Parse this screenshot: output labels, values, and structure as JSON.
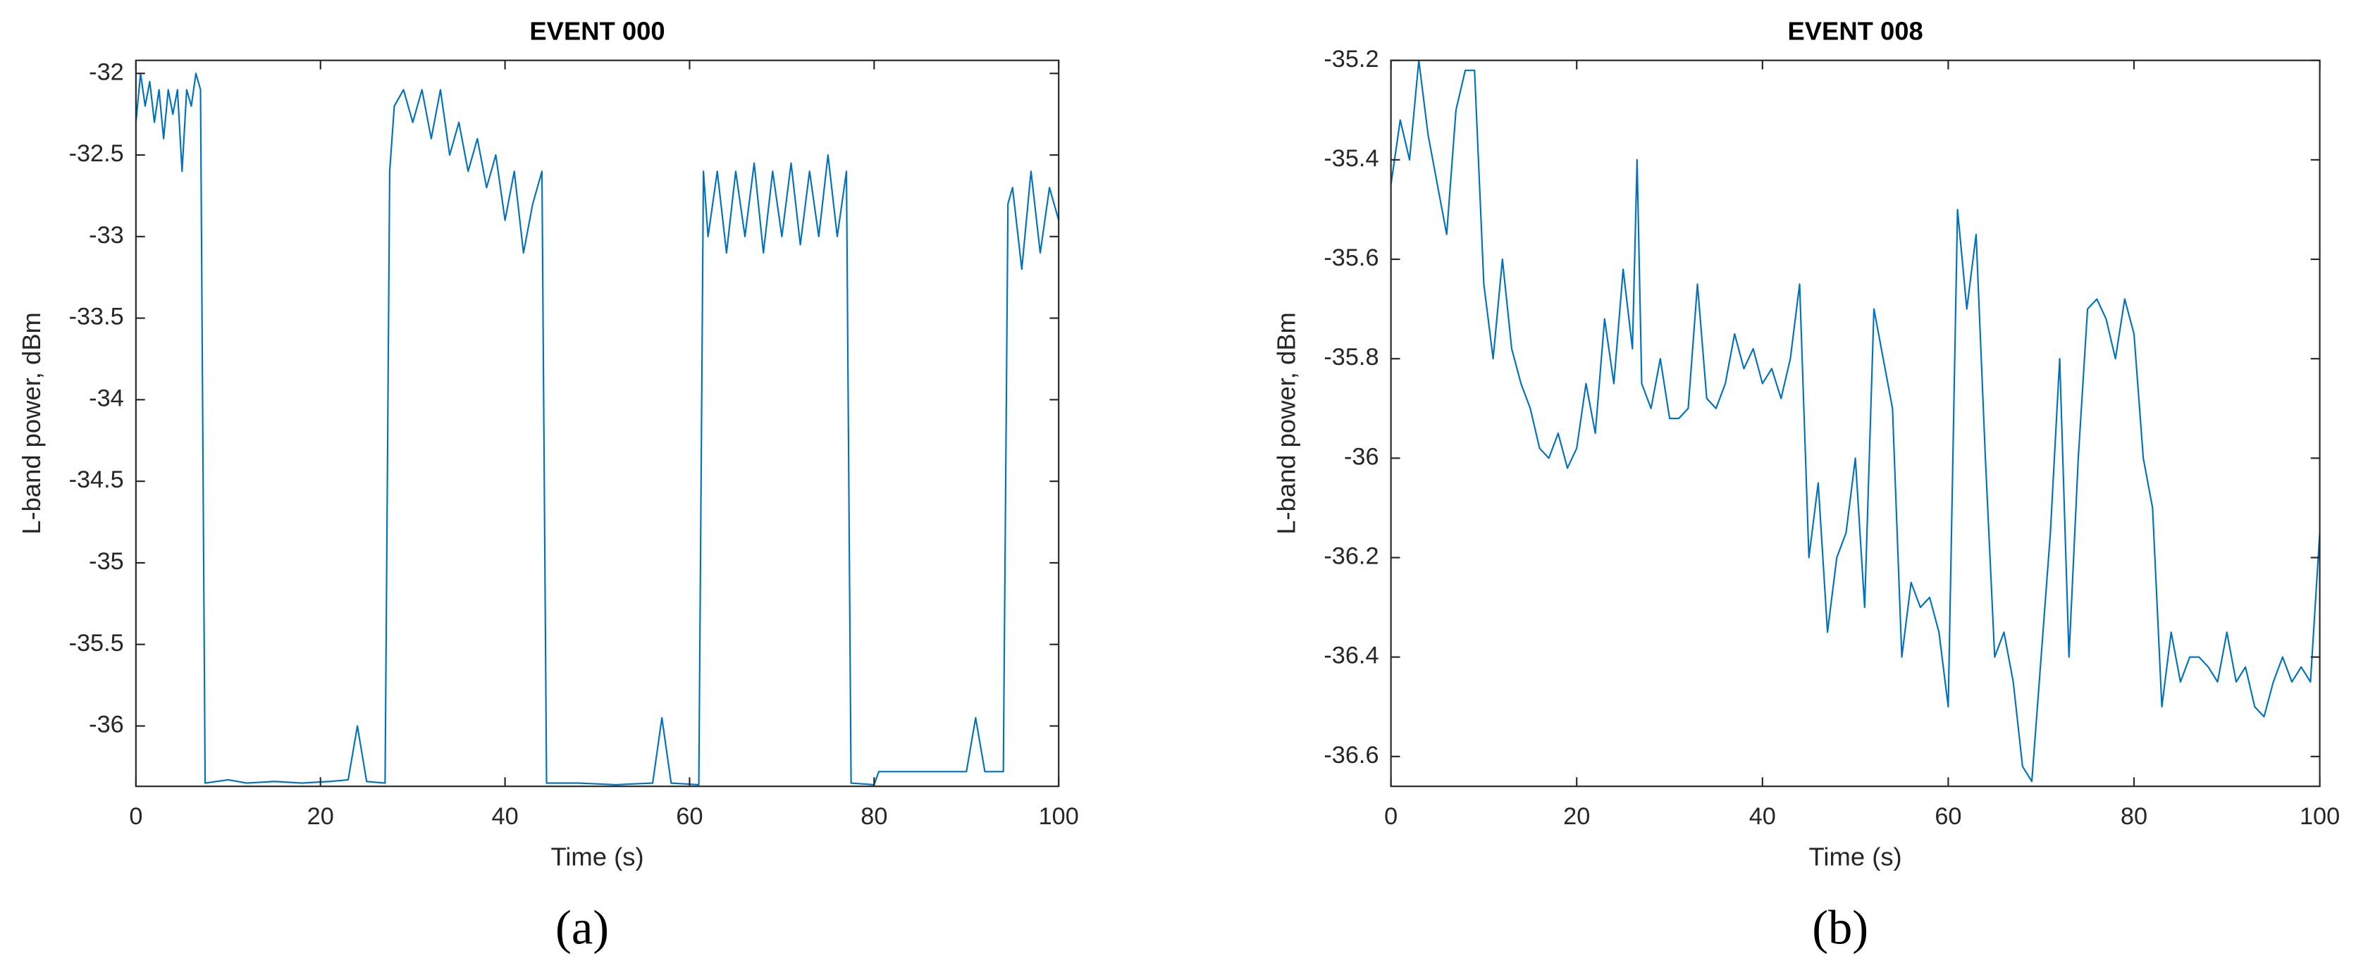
{
  "chart_data": [
    {
      "type": "line",
      "title": "EVENT 000",
      "xlabel": "Time (s)",
      "ylabel": "L-band power, dBm",
      "caption": "(a)",
      "color": "#0072bd",
      "grid": false,
      "xlim": [
        0,
        100
      ],
      "xticks": [
        0,
        20,
        40,
        60,
        80,
        100
      ],
      "ylim": [
        -36.37,
        -31.92
      ],
      "yticks": [
        -36,
        -35.5,
        -35,
        -34.5,
        -34,
        -33.5,
        -33,
        -32.5,
        -32
      ],
      "x": [
        0,
        0.5,
        1,
        1.5,
        2,
        2.5,
        3,
        3.5,
        4,
        4.5,
        5,
        5.5,
        6,
        6.5,
        7,
        7.5,
        10,
        12,
        15,
        18,
        21,
        23,
        24,
        25,
        27,
        27.5,
        28,
        29,
        30,
        31,
        32,
        33,
        34,
        35,
        36,
        37,
        38,
        39,
        40,
        41,
        42,
        43,
        44,
        44.5,
        48,
        52,
        56,
        57,
        58,
        61,
        61.5,
        62,
        63,
        64,
        65,
        66,
        67,
        68,
        69,
        70,
        71,
        72,
        73,
        74,
        75,
        76,
        77,
        77.5,
        80,
        80.5,
        85,
        90,
        91,
        92,
        94,
        94.5,
        95,
        96,
        97,
        98,
        99,
        100
      ],
      "values": [
        -32.3,
        -32.0,
        -32.2,
        -32.05,
        -32.3,
        -32.1,
        -32.4,
        -32.1,
        -32.25,
        -32.1,
        -32.6,
        -32.1,
        -32.2,
        -32.0,
        -32.1,
        -36.35,
        -36.33,
        -36.35,
        -36.34,
        -36.35,
        -36.34,
        -36.33,
        -36.0,
        -36.34,
        -36.35,
        -32.6,
        -32.2,
        -32.1,
        -32.3,
        -32.1,
        -32.4,
        -32.1,
        -32.5,
        -32.3,
        -32.6,
        -32.4,
        -32.7,
        -32.5,
        -32.9,
        -32.6,
        -33.1,
        -32.8,
        -32.6,
        -36.35,
        -36.35,
        -36.36,
        -36.35,
        -35.95,
        -36.35,
        -36.36,
        -32.6,
        -33.0,
        -32.6,
        -33.1,
        -32.6,
        -33.0,
        -32.55,
        -33.1,
        -32.6,
        -33.0,
        -32.55,
        -33.05,
        -32.6,
        -33.0,
        -32.5,
        -33.0,
        -32.6,
        -36.35,
        -36.36,
        -36.28,
        -36.28,
        -36.28,
        -35.95,
        -36.28,
        -36.28,
        -32.8,
        -32.7,
        -33.2,
        -32.6,
        -33.1,
        -32.7,
        -32.9
      ]
    },
    {
      "type": "line",
      "title": "EVENT 008",
      "xlabel": "Time (s)",
      "ylabel": "L-band power, dBm",
      "caption": "(b)",
      "color": "#0072bd",
      "grid": false,
      "xlim": [
        0,
        100
      ],
      "xticks": [
        0,
        20,
        40,
        60,
        80,
        100
      ],
      "ylim": [
        -36.66,
        -35.2
      ],
      "yticks": [
        -36.6,
        -36.4,
        -36.2,
        -36,
        -35.8,
        -35.6,
        -35.4,
        -35.2
      ],
      "x": [
        0,
        1,
        2,
        3,
        4,
        5,
        6,
        7,
        8,
        9,
        10,
        11,
        12,
        13,
        14,
        15,
        16,
        17,
        18,
        19,
        20,
        21,
        22,
        23,
        24,
        25,
        26,
        26.5,
        27,
        28,
        29,
        30,
        31,
        32,
        33,
        34,
        35,
        36,
        37,
        38,
        39,
        40,
        41,
        42,
        43,
        44,
        45,
        46,
        47,
        48,
        49,
        50,
        51,
        52,
        53,
        54,
        55,
        56,
        57,
        58,
        59,
        60,
        61,
        62,
        63,
        64,
        65,
        66,
        67,
        68,
        69,
        70,
        71,
        72,
        73,
        74,
        75,
        76,
        77,
        78,
        79,
        80,
        81,
        82,
        83,
        84,
        85,
        86,
        87,
        88,
        89,
        90,
        91,
        92,
        93,
        94,
        95,
        96,
        97,
        98,
        99,
        100
      ],
      "values": [
        -35.45,
        -35.32,
        -35.4,
        -35.2,
        -35.35,
        -35.45,
        -35.55,
        -35.3,
        -35.22,
        -35.22,
        -35.65,
        -35.8,
        -35.6,
        -35.78,
        -35.85,
        -35.9,
        -35.98,
        -36.0,
        -35.95,
        -36.02,
        -35.98,
        -35.85,
        -35.95,
        -35.72,
        -35.85,
        -35.62,
        -35.78,
        -35.4,
        -35.85,
        -35.9,
        -35.8,
        -35.92,
        -35.92,
        -35.9,
        -35.65,
        -35.88,
        -35.9,
        -35.85,
        -35.75,
        -35.82,
        -35.78,
        -35.85,
        -35.82,
        -35.88,
        -35.8,
        -35.65,
        -36.2,
        -36.05,
        -36.35,
        -36.2,
        -36.15,
        -36.0,
        -36.3,
        -35.7,
        -35.8,
        -35.9,
        -36.4,
        -36.25,
        -36.3,
        -36.28,
        -36.35,
        -36.5,
        -35.5,
        -35.7,
        -35.55,
        -36.0,
        -36.4,
        -36.35,
        -36.45,
        -36.62,
        -36.65,
        -36.4,
        -36.15,
        -35.8,
        -36.4,
        -36.0,
        -35.7,
        -35.68,
        -35.72,
        -35.8,
        -35.68,
        -35.75,
        -36.0,
        -36.1,
        -36.5,
        -36.35,
        -36.45,
        -36.4,
        -36.4,
        -36.42,
        -36.45,
        -36.35,
        -36.45,
        -36.42,
        -36.5,
        -36.52,
        -36.45,
        -36.4,
        -36.45,
        -36.42,
        -36.45,
        -36.15
      ]
    }
  ]
}
